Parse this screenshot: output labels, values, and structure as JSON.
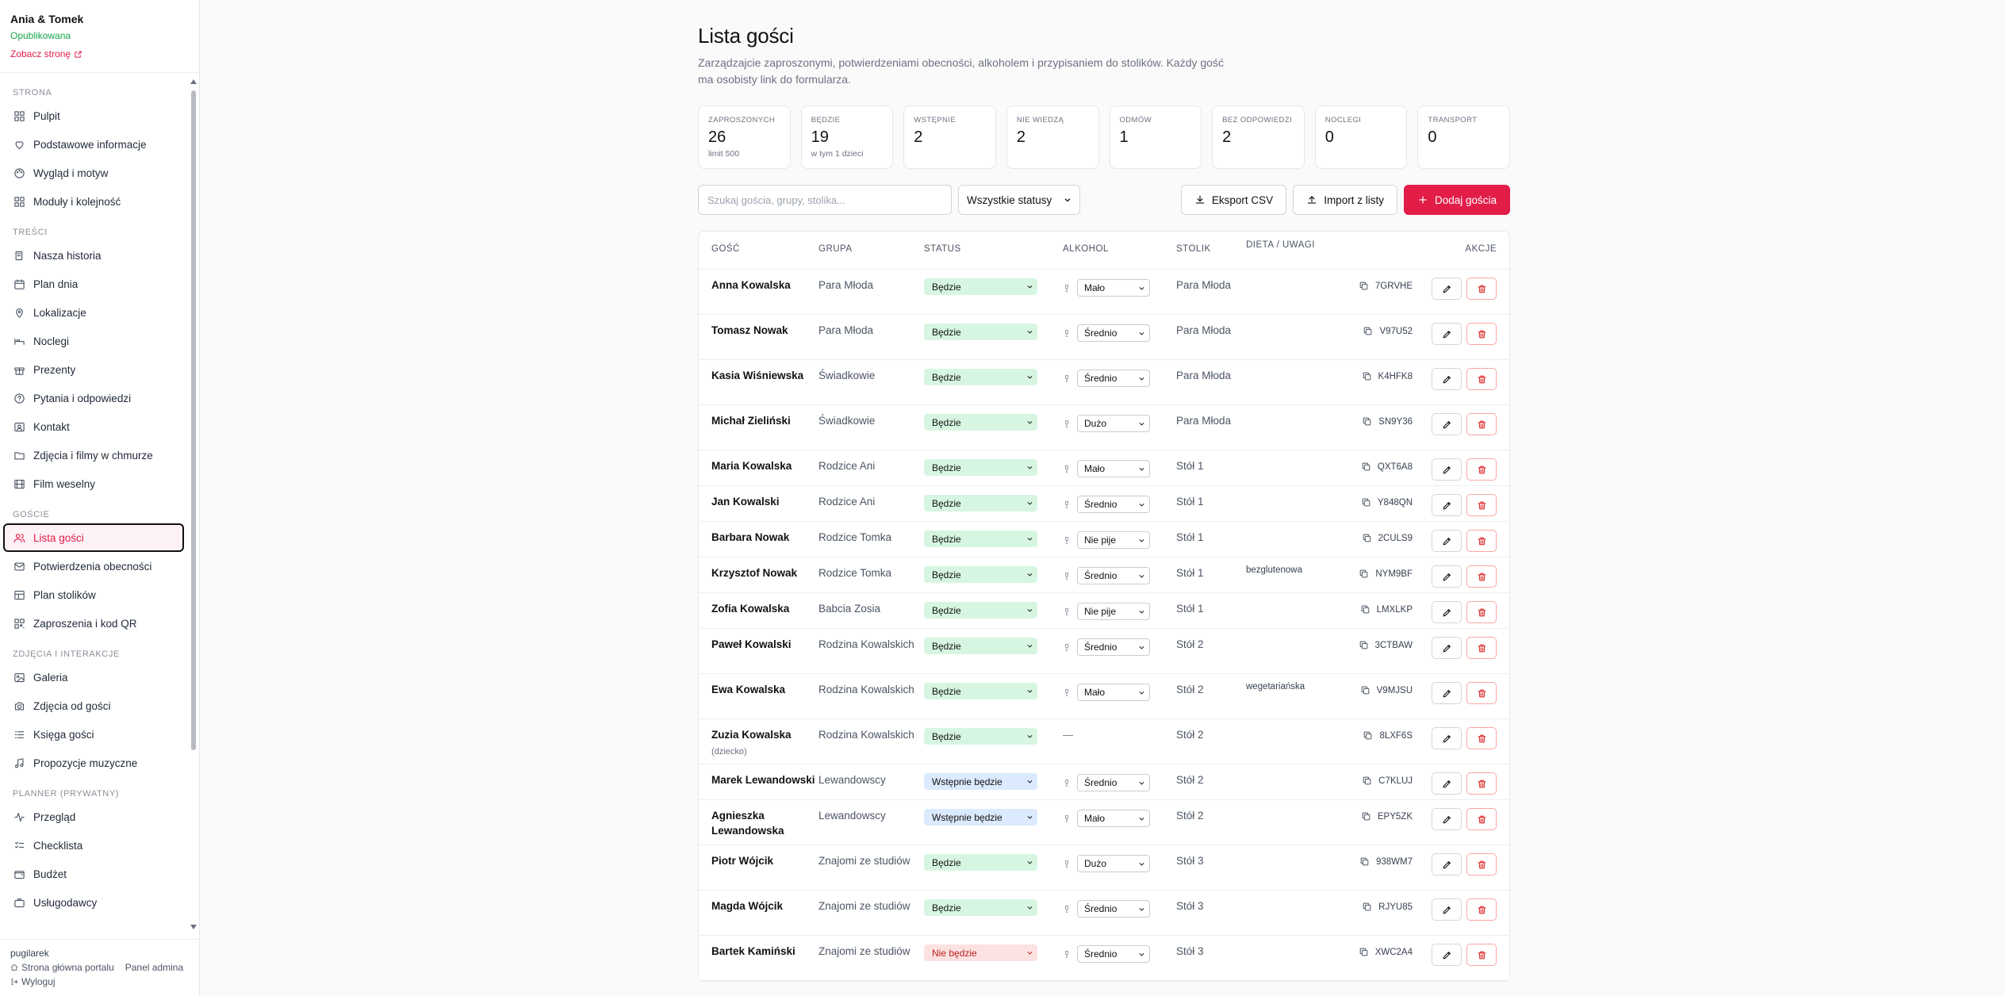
{
  "site": {
    "title": "Ania & Tomek",
    "status": "Opublikowana",
    "view_link": "Zobacz stronę"
  },
  "sidebar": {
    "sections": [
      {
        "label": "STRONA",
        "items": [
          {
            "label": "Pulpit",
            "icon": "dashboard-icon"
          },
          {
            "label": "Podstawowe informacje",
            "icon": "heart-icon"
          },
          {
            "label": "Wygląd i motyw",
            "icon": "palette-icon"
          },
          {
            "label": "Moduły i kolejność",
            "icon": "grid-icon"
          }
        ]
      },
      {
        "label": "TREŚCI",
        "items": [
          {
            "label": "Nasza historia",
            "icon": "book-icon"
          },
          {
            "label": "Plan dnia",
            "icon": "calendar-icon"
          },
          {
            "label": "Lokalizacje",
            "icon": "map-pin-icon"
          },
          {
            "label": "Noclegi",
            "icon": "bed-icon"
          },
          {
            "label": "Prezenty",
            "icon": "gift-icon"
          },
          {
            "label": "Pytania i odpowiedzi",
            "icon": "help-icon"
          },
          {
            "label": "Kontakt",
            "icon": "contact-icon"
          },
          {
            "label": "Zdjęcia i filmy w chmurze",
            "icon": "folder-icon"
          },
          {
            "label": "Film weselny",
            "icon": "film-icon"
          }
        ]
      },
      {
        "label": "GOŚCIE",
        "items": [
          {
            "label": "Lista gości",
            "icon": "users-icon",
            "active": true
          },
          {
            "label": "Potwierdzenia obecności",
            "icon": "mail-icon"
          },
          {
            "label": "Plan stolików",
            "icon": "table-icon"
          },
          {
            "label": "Zaproszenia i kod QR",
            "icon": "qr-icon"
          }
        ]
      },
      {
        "label": "ZDJĘCIA I INTERAKCJE",
        "items": [
          {
            "label": "Galeria",
            "icon": "image-icon"
          },
          {
            "label": "Zdjęcia od gości",
            "icon": "camera-icon"
          },
          {
            "label": "Księga gości",
            "icon": "list-icon"
          },
          {
            "label": "Propozycje muzyczne",
            "icon": "music-icon"
          }
        ]
      },
      {
        "label": "PLANNER (PRYWATNY)",
        "items": [
          {
            "label": "Przegląd",
            "icon": "overview-icon"
          },
          {
            "label": "Checklista",
            "icon": "checklist-icon"
          },
          {
            "label": "Budżet",
            "icon": "wallet-icon"
          },
          {
            "label": "Usługodawcy",
            "icon": "briefcase-icon"
          }
        ]
      }
    ],
    "footer": {
      "user": "pugilarek",
      "portal_link": "Strona główna portalu",
      "admin_link": "Panel admina",
      "logout": "Wyloguj"
    }
  },
  "page": {
    "title": "Lista gości",
    "description": "Zarządzajcie zaproszonymi, potwierdzeniami obecności, alkoholem i przypisaniem do stolików. Każdy gość ma osobisty link do formularza."
  },
  "stats": [
    {
      "label": "ZAPROSZONYCH",
      "value": "26",
      "sub": "limit 500"
    },
    {
      "label": "BĘDZIE",
      "value": "19",
      "sub": "w tym 1 dzieci"
    },
    {
      "label": "WSTĘPNIE",
      "value": "2",
      "sub": ""
    },
    {
      "label": "NIE WIEDZĄ",
      "value": "2",
      "sub": ""
    },
    {
      "label": "ODMÓW",
      "value": "1",
      "sub": ""
    },
    {
      "label": "BEZ ODPOWIEDZI",
      "value": "2",
      "sub": ""
    },
    {
      "label": "NOCLEGI",
      "value": "0",
      "sub": ""
    },
    {
      "label": "TRANSPORT",
      "value": "0",
      "sub": ""
    }
  ],
  "toolbar": {
    "search_placeholder": "Szukaj gościa, grupy, stolika...",
    "status_filter": "Wszystkie statusy",
    "export_label": "Eksport CSV",
    "import_label": "Import z listy",
    "add_label": "Dodaj gościa"
  },
  "table": {
    "headers": {
      "guest": "GOŚĆ",
      "group": "GRUPA",
      "status": "STATUS",
      "alcohol": "ALKOHOL",
      "table": "STOLIK",
      "diet": "DIETA / UWAGI",
      "actions": "AKCJE"
    },
    "rows": [
      {
        "name": "Anna Kowalska",
        "tag": "",
        "group": "Para Młoda",
        "status": "Będzie",
        "status_color": "green",
        "alcohol": "Mało",
        "table": "Para Młoda",
        "diet": "",
        "code": "7GRVHE"
      },
      {
        "name": "Tomasz Nowak",
        "tag": "",
        "group": "Para Młoda",
        "status": "Będzie",
        "status_color": "green",
        "alcohol": "Średnio",
        "table": "Para Młoda",
        "diet": "",
        "code": "V97U52"
      },
      {
        "name": "Kasia Wiśniewska",
        "tag": "",
        "group": "Świadkowie",
        "status": "Będzie",
        "status_color": "green",
        "alcohol": "Średnio",
        "table": "Para Młoda",
        "diet": "",
        "code": "K4HFK8"
      },
      {
        "name": "Michał Zieliński",
        "tag": "",
        "group": "Świadkowie",
        "status": "Będzie",
        "status_color": "green",
        "alcohol": "Dużo",
        "table": "Para Młoda",
        "diet": "",
        "code": "SN9Y36"
      },
      {
        "name": "Maria Kowalska",
        "tag": "",
        "group": "Rodzice Ani",
        "status": "Będzie",
        "status_color": "green",
        "alcohol": "Mało",
        "table": "Stół 1",
        "diet": "",
        "code": "QXT6A8"
      },
      {
        "name": "Jan Kowalski",
        "tag": "",
        "group": "Rodzice Ani",
        "status": "Będzie",
        "status_color": "green",
        "alcohol": "Średnio",
        "table": "Stół 1",
        "diet": "",
        "code": "Y848QN"
      },
      {
        "name": "Barbara Nowak",
        "tag": "",
        "group": "Rodzice Tomka",
        "status": "Będzie",
        "status_color": "green",
        "alcohol": "Nie pije",
        "table": "Stół 1",
        "diet": "",
        "code": "2CULS9"
      },
      {
        "name": "Krzysztof Nowak",
        "tag": "",
        "group": "Rodzice Tomka",
        "status": "Będzie",
        "status_color": "green",
        "alcohol": "Średnio",
        "table": "Stół 1",
        "diet": "bezglutenowa",
        "code": "NYM9BF"
      },
      {
        "name": "Zofia Kowalska",
        "tag": "",
        "group": "Babcia Zosia",
        "status": "Będzie",
        "status_color": "green",
        "alcohol": "Nie pije",
        "table": "Stół 1",
        "diet": "",
        "code": "LMXLKP"
      },
      {
        "name": "Paweł Kowalski",
        "tag": "",
        "group": "Rodzina Kowalskich",
        "status": "Będzie",
        "status_color": "green",
        "alcohol": "Średnio",
        "table": "Stół 2",
        "diet": "",
        "code": "3CTBAW"
      },
      {
        "name": "Ewa Kowalska",
        "tag": "",
        "group": "Rodzina Kowalskich",
        "status": "Będzie",
        "status_color": "green",
        "alcohol": "Mało",
        "table": "Stół 2",
        "diet": "wegetariańska",
        "code": "V9MJSU"
      },
      {
        "name": "Zuzia Kowalska",
        "tag": "(dziecko)",
        "group": "Rodzina Kowalskich",
        "status": "Będzie",
        "status_color": "green",
        "alcohol": "",
        "table": "Stół 2",
        "diet": "",
        "code": "8LXF6S"
      },
      {
        "name": "Marek Lewandowski",
        "tag": "",
        "group": "Lewandowscy",
        "status": "Wstępnie będzie",
        "status_color": "blue",
        "alcohol": "Średnio",
        "table": "Stół 2",
        "diet": "",
        "code": "C7KLUJ"
      },
      {
        "name": "Agnieszka Lewandowska",
        "tag": "",
        "group": "Lewandowscy",
        "status": "Wstępnie będzie",
        "status_color": "blue",
        "alcohol": "Mało",
        "table": "Stół 2",
        "diet": "",
        "code": "EPY5ZK"
      },
      {
        "name": "Piotr Wójcik",
        "tag": "",
        "group": "Znajomi ze studiów",
        "status": "Będzie",
        "status_color": "green",
        "alcohol": "Dużo",
        "table": "Stół 3",
        "diet": "",
        "code": "938WM7"
      },
      {
        "name": "Magda Wójcik",
        "tag": "",
        "group": "Znajomi ze studiów",
        "status": "Będzie",
        "status_color": "green",
        "alcohol": "Średnio",
        "table": "Stół 3",
        "diet": "",
        "code": "RJYU85"
      },
      {
        "name": "Bartek Kamiński",
        "tag": "",
        "group": "Znajomi ze studiów",
        "status": "Nie będzie",
        "status_color": "red",
        "alcohol": "Średnio",
        "table": "Stół 3",
        "diet": "",
        "code": "XWC2A4"
      }
    ],
    "no_alcohol_placeholder": "—"
  },
  "colors": {
    "accent": "#e11d48",
    "published": "#16a34a",
    "status_green": "#d7f6e2",
    "status_blue": "#dbeafe",
    "status_red": "#fde2e2"
  }
}
